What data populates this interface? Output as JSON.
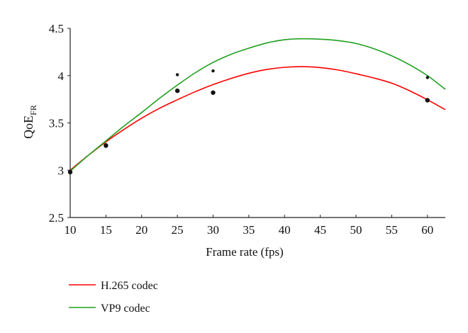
{
  "chart_data": {
    "type": "line",
    "title": "",
    "xlabel": "Frame rate (fps)",
    "ylabel": "QoE",
    "ylabel_sub": "FR",
    "xlim": [
      10,
      62.5
    ],
    "ylim": [
      2.5,
      4.5
    ],
    "xticks": [
      10,
      15,
      20,
      25,
      30,
      35,
      40,
      45,
      50,
      55,
      60
    ],
    "yticks": [
      2.5,
      3,
      3.5,
      4,
      4.5
    ],
    "ytick_labels": [
      "2.5",
      "3",
      "3.5",
      "4",
      "4.5"
    ],
    "grid": false,
    "legend_placement": "bottom-left",
    "series": [
      {
        "name": "H.265 codec",
        "color": "#ff0000",
        "curve_x": [
          10,
          12.5,
          15,
          17.5,
          20,
          22.5,
          25,
          27.5,
          30,
          32.5,
          35,
          37.5,
          40,
          42.5,
          45,
          47.5,
          50,
          52.5,
          55,
          57.5,
          60,
          62.5
        ],
        "curve_y": [
          3.0,
          3.155,
          3.3,
          3.43,
          3.55,
          3.655,
          3.745,
          3.83,
          3.905,
          3.97,
          4.025,
          4.065,
          4.088,
          4.095,
          4.085,
          4.06,
          4.02,
          3.975,
          3.92,
          3.84,
          3.745,
          3.64
        ],
        "points": [
          [
            10,
            2.98
          ],
          [
            15,
            3.26
          ],
          [
            25,
            3.84
          ],
          [
            30,
            3.82
          ],
          [
            60,
            3.74
          ]
        ]
      },
      {
        "name": "VP9 codec",
        "color": "#1fa01f",
        "curve_x": [
          10,
          12.5,
          15,
          17.5,
          20,
          22.5,
          25,
          27.5,
          30,
          32.5,
          35,
          37.5,
          40,
          42.5,
          45,
          47.5,
          50,
          52.5,
          55,
          57.5,
          60,
          62.5
        ],
        "curve_y": [
          2.99,
          3.155,
          3.31,
          3.465,
          3.61,
          3.76,
          3.9,
          4.03,
          4.14,
          4.225,
          4.29,
          4.345,
          4.38,
          4.39,
          4.385,
          4.37,
          4.34,
          4.285,
          4.21,
          4.115,
          4.0,
          3.855
        ],
        "points": [
          [
            10,
            2.99
          ],
          [
            15,
            3.27
          ],
          [
            25,
            4.01
          ],
          [
            30,
            4.05
          ],
          [
            60,
            3.98
          ]
        ]
      }
    ]
  }
}
